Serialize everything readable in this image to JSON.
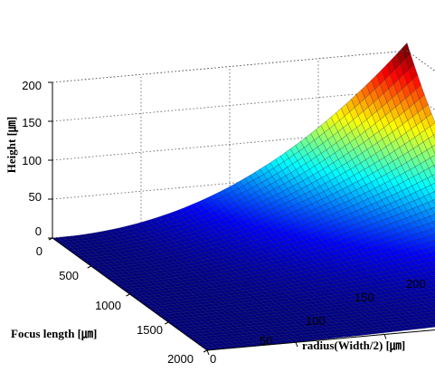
{
  "chart_data": {
    "type": "surface",
    "title": "",
    "xlabel": "radius(Width/2) [㎛]",
    "ylabel": "Focus length [㎛]",
    "zlabel": "Height [㎛]",
    "xlim": [
      0,
      200
    ],
    "ylim": [
      0,
      2000
    ],
    "zlim": [
      0,
      200
    ],
    "xticks": [
      "0",
      "50",
      "100",
      "150",
      "200"
    ],
    "yticks": [
      "0",
      "500",
      "1000",
      "1500",
      "2000"
    ],
    "zticks": [
      "0",
      "50",
      "100",
      "150",
      "200"
    ],
    "grid": true,
    "colormap": "jet",
    "surface": {
      "x_range": [
        0,
        200
      ],
      "y_range": [
        0,
        2000
      ],
      "z_at_corners": {
        "x0_y0": 0,
        "x200_y0": 210,
        "x0_y2000": 0,
        "x200_y2000": 10
      }
    }
  }
}
